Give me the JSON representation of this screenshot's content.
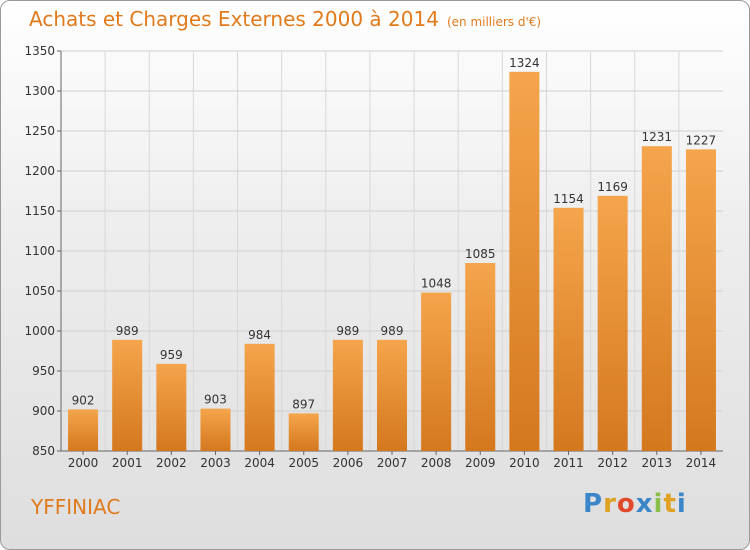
{
  "chart_data": {
    "type": "bar",
    "title": "Achats et Charges Externes 2000 à 2014",
    "subtitle": "(en milliers d'€)",
    "categories": [
      "2000",
      "2001",
      "2002",
      "2003",
      "2004",
      "2005",
      "2006",
      "2007",
      "2008",
      "2009",
      "2010",
      "2011",
      "2012",
      "2013",
      "2014"
    ],
    "values": [
      902,
      989,
      959,
      903,
      984,
      897,
      989,
      989,
      1048,
      1085,
      1324,
      1154,
      1169,
      1231,
      1227
    ],
    "ylim": [
      850,
      1350
    ],
    "yticks": [
      850,
      900,
      950,
      1000,
      1050,
      1100,
      1150,
      1200,
      1250,
      1300,
      1350
    ],
    "grid": true,
    "colors": {
      "bar_light": "#f5a54c",
      "bar_dark": "#d4781e",
      "text": "#e07a1c"
    }
  },
  "commune": "YFFINIAC",
  "logo": {
    "letters": [
      {
        "ch": "P",
        "color": "#3a86c8"
      },
      {
        "ch": "r",
        "color": "#e0a020"
      },
      {
        "ch": "o",
        "color": "#e04a2a"
      },
      {
        "ch": "x",
        "color": "#3a86c8"
      },
      {
        "ch": "i",
        "color": "#8ac04a"
      },
      {
        "ch": "t",
        "color": "#e0a020"
      },
      {
        "ch": "i",
        "color": "#3a86c8"
      }
    ]
  }
}
